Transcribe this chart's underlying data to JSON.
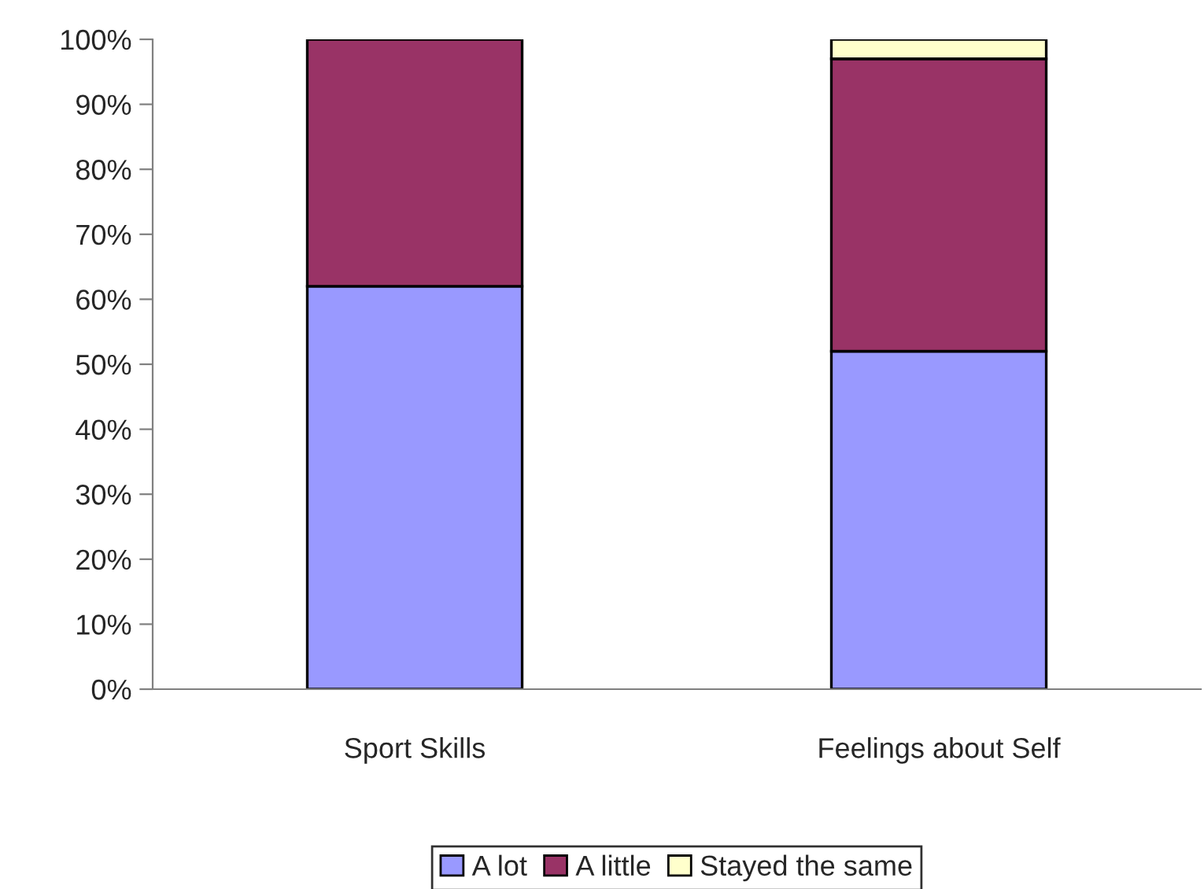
{
  "chart_data": {
    "type": "bar",
    "stacked": true,
    "categories": [
      "Sport Skills",
      "Feelings about Self"
    ],
    "series": [
      {
        "name": "A lot",
        "color": "#9999ff",
        "values": [
          62,
          52
        ]
      },
      {
        "name": "A little",
        "color": "#993366",
        "values": [
          38,
          45
        ]
      },
      {
        "name": "Stayed the same",
        "color": "#ffffcc",
        "values": [
          0,
          3
        ]
      }
    ],
    "ylim": [
      0,
      100
    ],
    "yticks": [
      {
        "value": 0,
        "label": "0%"
      },
      {
        "value": 10,
        "label": "10%"
      },
      {
        "value": 20,
        "label": "20%"
      },
      {
        "value": 30,
        "label": "30%"
      },
      {
        "value": 40,
        "label": "40%"
      },
      {
        "value": 50,
        "label": "50%"
      },
      {
        "value": 60,
        "label": "60%"
      },
      {
        "value": 70,
        "label": "70%"
      },
      {
        "value": 80,
        "label": "80%"
      },
      {
        "value": 90,
        "label": "90%"
      },
      {
        "value": 100,
        "label": "100%"
      }
    ],
    "grid": false,
    "legend": "bottom"
  }
}
